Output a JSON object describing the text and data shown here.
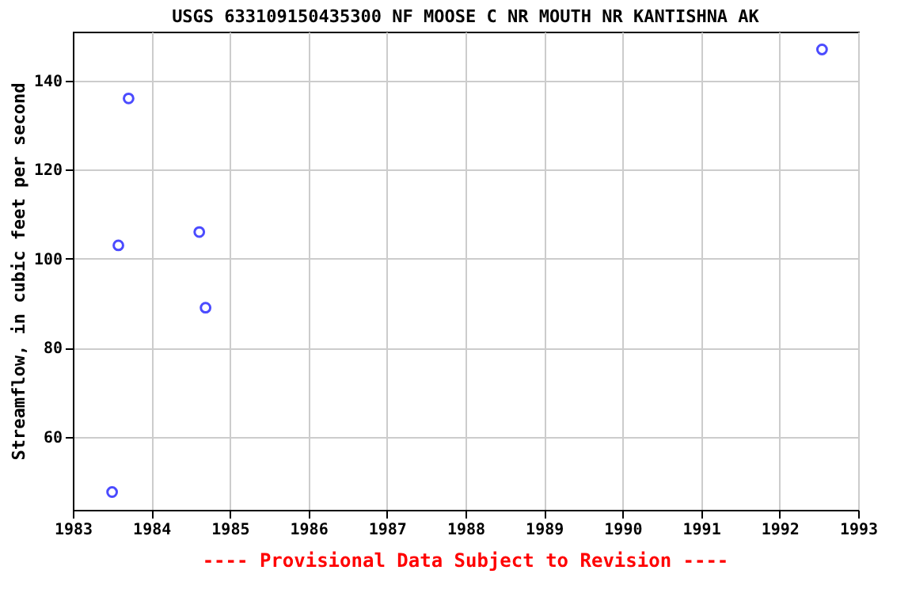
{
  "chart_data": {
    "type": "scatter",
    "title": "USGS 633109150435300 NF MOOSE C NR MOUTH NR KANTISHNA AK",
    "ylabel": "Streamflow, in cubic feet per second",
    "x": [
      1983.5,
      1983.58,
      1983.71,
      1984.61,
      1984.69,
      1992.54
    ],
    "series": [
      {
        "color": "#0000ff",
        "values": [
          47.6,
          103,
          136,
          106,
          89,
          147
        ]
      }
    ],
    "xlim": [
      1983,
      1993
    ],
    "xticks": [
      1983,
      1984,
      1985,
      1986,
      1987,
      1988,
      1989,
      1990,
      1991,
      1992,
      1993
    ],
    "ylim": [
      43.6,
      151
    ],
    "yticks": [
      60,
      80,
      100,
      120,
      140
    ],
    "grid": true,
    "marker": "circle",
    "legend": false,
    "annotations": [
      "---- Provisional Data Subject to Revision ----"
    ]
  }
}
